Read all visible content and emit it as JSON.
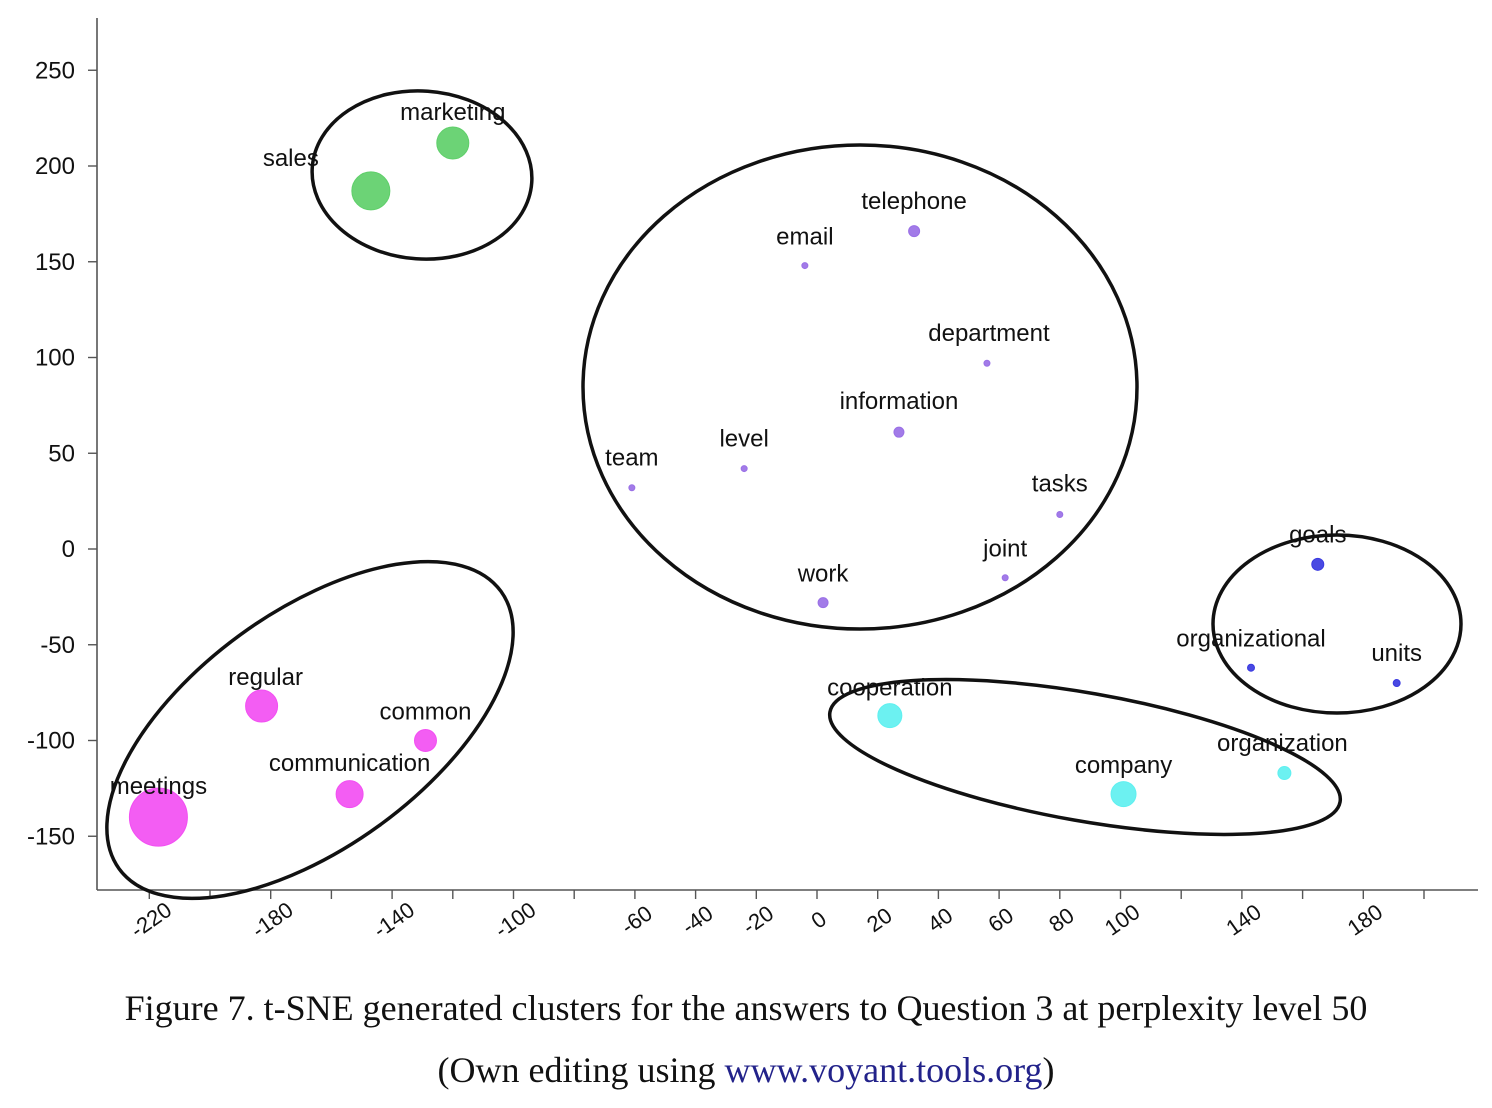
{
  "chart_data": {
    "type": "scatter",
    "title": "",
    "xlabel": "",
    "ylabel": "",
    "xlim": [
      -230,
      210
    ],
    "ylim": [
      -178,
      278
    ],
    "xticks": [
      -220,
      -180,
      -140,
      -100,
      -60,
      -40,
      -20,
      0,
      20,
      40,
      60,
      80,
      100,
      140,
      180
    ],
    "yticks": [
      250,
      200,
      150,
      100,
      50,
      0,
      -50,
      -100,
      -150
    ],
    "grid": false,
    "points": [
      {
        "label": "marketing",
        "x": -120,
        "y": 212,
        "size": 16,
        "cluster": "green"
      },
      {
        "label": "sales",
        "x": -147,
        "y": 187,
        "size": 19,
        "cluster": "green"
      },
      {
        "label": "telephone",
        "x": 32,
        "y": 166,
        "size": 5.5,
        "cluster": "purple"
      },
      {
        "label": "email",
        "x": -4,
        "y": 148,
        "size": 3,
        "cluster": "purple"
      },
      {
        "label": "department",
        "x": 56,
        "y": 97,
        "size": 3,
        "cluster": "purple"
      },
      {
        "label": "information",
        "x": 27,
        "y": 61,
        "size": 5,
        "cluster": "purple"
      },
      {
        "label": "level",
        "x": -24,
        "y": 42,
        "size": 3,
        "cluster": "purple"
      },
      {
        "label": "team",
        "x": -61,
        "y": 32,
        "size": 3,
        "cluster": "purple"
      },
      {
        "label": "tasks",
        "x": 80,
        "y": 18,
        "size": 3,
        "cluster": "purple"
      },
      {
        "label": "joint",
        "x": 62,
        "y": -15,
        "size": 3,
        "cluster": "purple"
      },
      {
        "label": "work",
        "x": 2,
        "y": -28,
        "size": 5,
        "cluster": "purple"
      },
      {
        "label": "goals",
        "x": 165,
        "y": -8,
        "size": 6,
        "cluster": "blue"
      },
      {
        "label": "organizational",
        "x": 143,
        "y": -62,
        "size": 3.5,
        "cluster": "blue"
      },
      {
        "label": "units",
        "x": 191,
        "y": -70,
        "size": 3.5,
        "cluster": "blue"
      },
      {
        "label": "cooperation",
        "x": 24,
        "y": -87,
        "size": 12,
        "cluster": "cyan"
      },
      {
        "label": "company",
        "x": 101,
        "y": -128,
        "size": 12.5,
        "cluster": "cyan"
      },
      {
        "label": "organization",
        "x": 154,
        "y": -117,
        "size": 6.5,
        "cluster": "cyan"
      },
      {
        "label": "regular",
        "x": -183,
        "y": -82,
        "size": 16,
        "cluster": "magenta"
      },
      {
        "label": "common",
        "x": -129,
        "y": -100,
        "size": 11,
        "cluster": "magenta"
      },
      {
        "label": "communication",
        "x": -154,
        "y": -128,
        "size": 13.5,
        "cluster": "magenta"
      },
      {
        "label": "meetings",
        "x": -217,
        "y": -140,
        "size": 29,
        "cluster": "magenta"
      }
    ],
    "cluster_colors": {
      "green": "#5fcf6a",
      "purple": "#9a70e6",
      "blue": "#3a3ae0",
      "cyan": "#5ff0f0",
      "magenta": "#f24ff2"
    }
  },
  "caption": {
    "line1": "Figure 7. t-SNE generated clusters for the answers to Question 3 at perplexity level 50",
    "line2_prefix": "(Own editing using ",
    "line2_link": "www.voyant.tools.org",
    "line2_suffix": ")"
  }
}
